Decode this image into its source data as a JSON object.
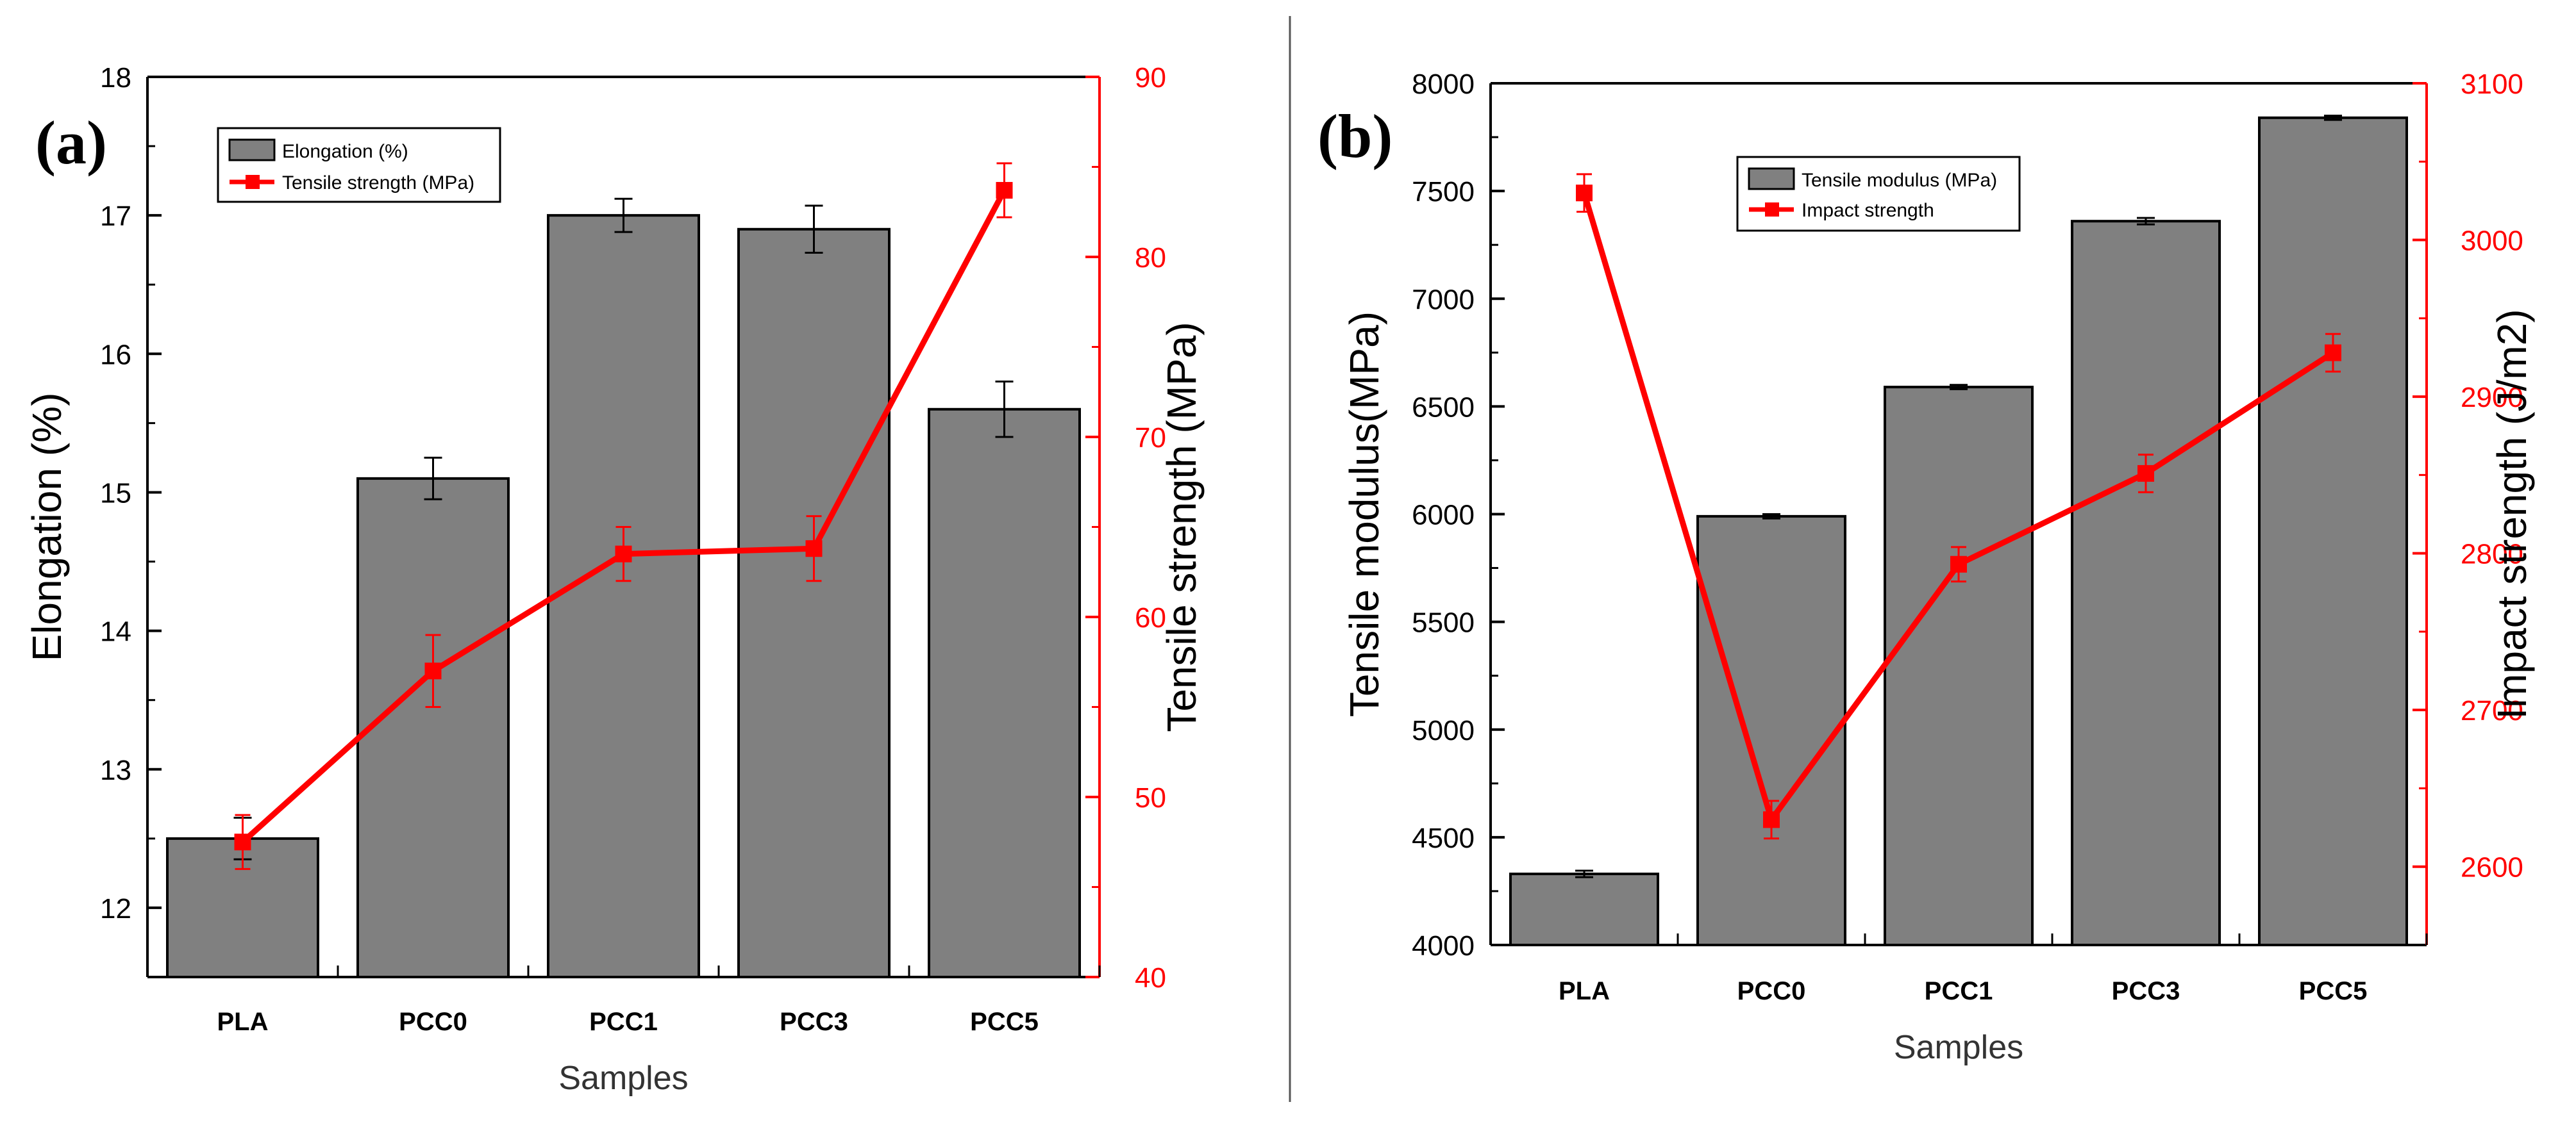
{
  "colors": {
    "bar_fill": "#808080",
    "bar_stroke": "#000000",
    "line": "#ff0000",
    "left_axis": "#000000",
    "right_axis": "#ff0000",
    "divider": "#555555"
  },
  "chart_data": [
    {
      "panel": "(a)",
      "type": "bar",
      "xlabel": "Samples",
      "ylabel": "Elongation (%)",
      "ylim": [
        11.5,
        18
      ],
      "yticks": [
        "12",
        "13",
        "14",
        "15",
        "16",
        "17",
        "18"
      ],
      "y2label": "Tensile strength (MPa)",
      "y2lim": [
        40,
        90
      ],
      "y2ticks": [
        "40",
        "50",
        "60",
        "70",
        "80",
        "90"
      ],
      "categories": [
        "PLA",
        "PCC0",
        "PCC1",
        "PCC3",
        "PCC5"
      ],
      "legend": [
        "Elongation (%)",
        "Tensile strength (MPa)"
      ],
      "legend_position": "top-left",
      "series": [
        {
          "name": "Elongation (%)",
          "type": "bar",
          "axis": "left",
          "values": [
            12.5,
            15.1,
            17.0,
            16.9,
            15.6
          ],
          "errors": [
            0.15,
            0.15,
            0.12,
            0.17,
            0.2
          ]
        },
        {
          "name": "Tensile strength (MPa)",
          "type": "line",
          "axis": "right",
          "values": [
            47.5,
            57.0,
            63.5,
            63.8,
            83.7
          ],
          "errors": [
            1.5,
            2.0,
            1.5,
            1.8,
            1.5
          ]
        }
      ]
    },
    {
      "panel": "(b)",
      "type": "bar",
      "xlabel": "Samples",
      "ylabel": "Tensile modulus(MPa)",
      "ylim": [
        4000,
        8000
      ],
      "yticks": [
        "4000",
        "4500",
        "5000",
        "5500",
        "6000",
        "6500",
        "7000",
        "7500",
        "8000"
      ],
      "y2label": "Impact strength (J/m2)",
      "y2lim": [
        2550,
        3100
      ],
      "y2ticks": [
        "2600",
        "2700",
        "2800",
        "2900",
        "3000",
        "3100"
      ],
      "categories": [
        "PLA",
        "PCC0",
        "PCC1",
        "PCC3",
        "PCC5"
      ],
      "legend": [
        "Tensile modulus (MPa)",
        "Impact strength"
      ],
      "legend_position": "top-left",
      "series": [
        {
          "name": "Tensile modulus (MPa)",
          "type": "bar",
          "axis": "left",
          "values": [
            4330,
            5990,
            6590,
            7360,
            7840
          ],
          "errors": [
            15,
            10,
            10,
            15,
            10
          ]
        },
        {
          "name": "Impact strength",
          "type": "line",
          "axis": "right",
          "values": [
            3030,
            2630,
            2793,
            2851,
            2928
          ],
          "errors": [
            12,
            12,
            11,
            12,
            12
          ]
        }
      ]
    }
  ]
}
